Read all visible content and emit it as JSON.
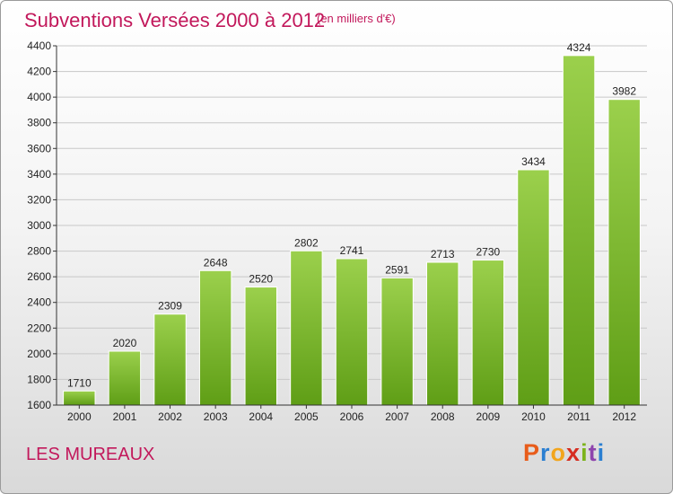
{
  "header": {
    "title": "Subventions Versées 2000 à 2012",
    "subtitle": "(en milliers d'€)"
  },
  "footer": {
    "commune": "LES MUREAUX",
    "logo_letters": [
      "P",
      "r",
      "o",
      "x",
      "i",
      "t",
      "i"
    ],
    "logo_colors": [
      "#e85c1a",
      "#2b7fd1",
      "#f2a51d",
      "#d62d20",
      "#7bb31b",
      "#8e44ad",
      "#2b7fd1"
    ]
  },
  "colors": {
    "bar_top": "#9bd04c",
    "bar_bottom": "#5f9e16",
    "accent": "#c2185b"
  },
  "chart_data": {
    "type": "bar",
    "title": "Subventions Versées 2000 à 2012",
    "subtitle": "(en milliers d'€)",
    "xlabel": "",
    "ylabel": "",
    "categories": [
      "2000",
      "2001",
      "2002",
      "2003",
      "2004",
      "2005",
      "2006",
      "2007",
      "2008",
      "2009",
      "2010",
      "2011",
      "2012"
    ],
    "values": [
      1710,
      2020,
      2309,
      2648,
      2520,
      2802,
      2741,
      2591,
      2713,
      2730,
      3434,
      4324,
      3982
    ],
    "ylim": [
      1600,
      4400
    ],
    "yticks": [
      1600,
      1800,
      2000,
      2200,
      2400,
      2600,
      2800,
      3000,
      3200,
      3400,
      3600,
      3800,
      4000,
      4200,
      4400
    ],
    "grid": true,
    "legend": "none"
  }
}
